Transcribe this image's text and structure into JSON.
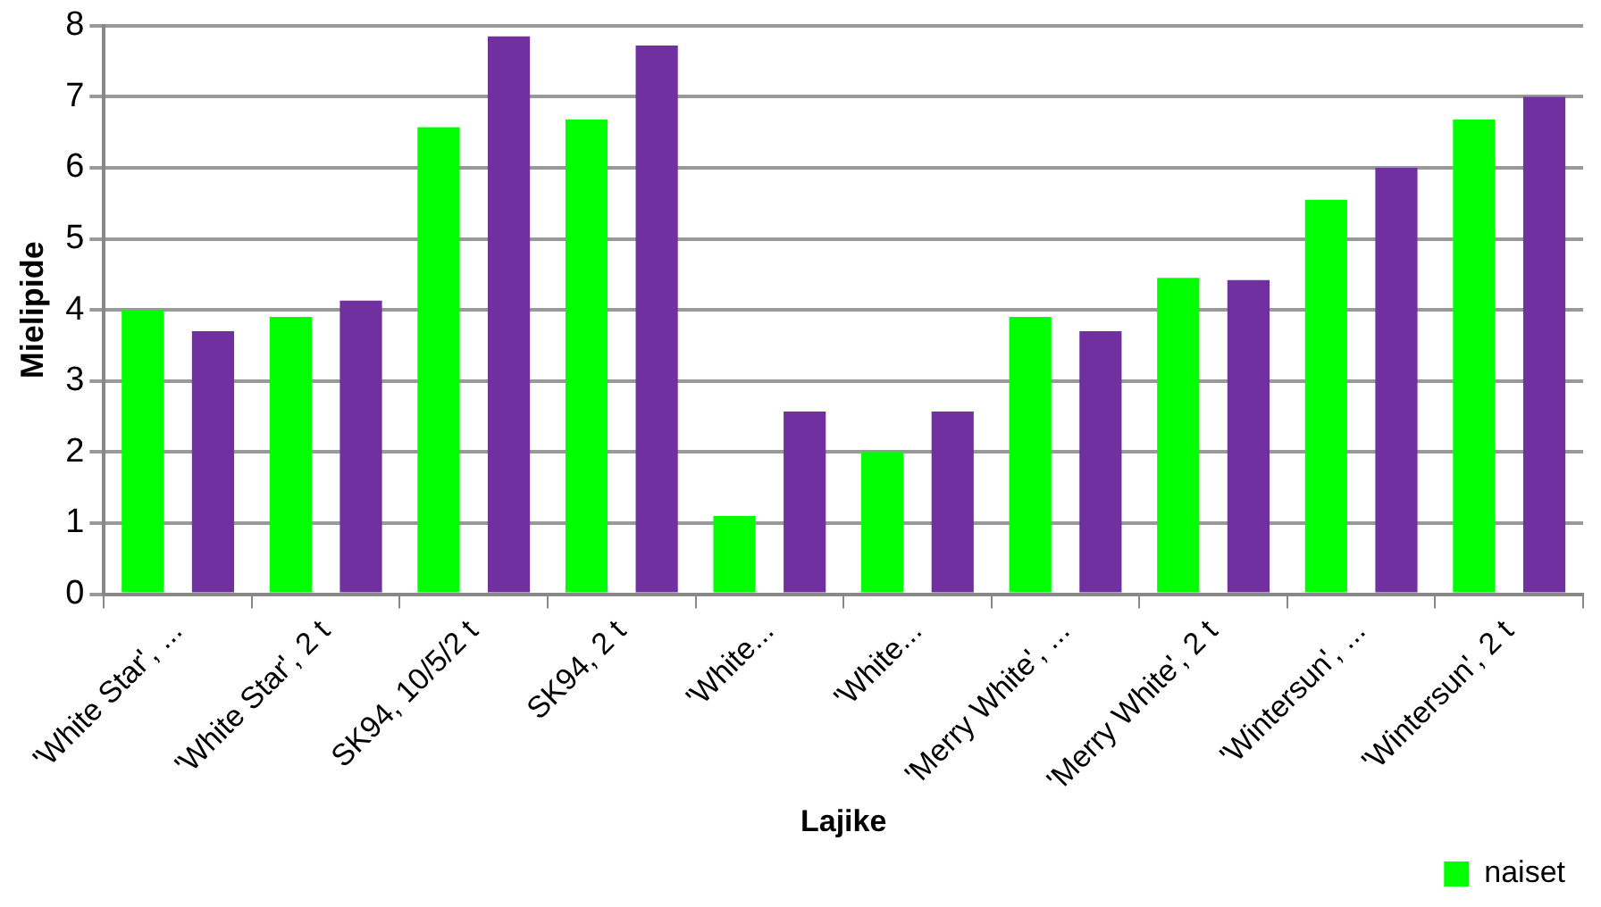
{
  "chart_data": {
    "type": "bar",
    "xlabel": "Lajike",
    "ylabel": "Mielipide",
    "categories": [
      "'White Star', ...",
      "'White Star', 2 t",
      "SK94, 10/5/2 t",
      "SK94, 2 t",
      "'White...",
      "'White...",
      "'Merry White', ...",
      "'Merry White', 2 t",
      "'Wintersun', ...",
      "'Wintersun', 2 t"
    ],
    "series": [
      {
        "name": "naiset",
        "color": "#00ff00",
        "values": [
          4.0,
          3.9,
          6.57,
          6.68,
          1.1,
          2.0,
          3.9,
          4.45,
          5.55,
          6.68
        ]
      },
      {
        "color": "#7030a0",
        "values": [
          3.7,
          4.13,
          7.85,
          7.72,
          2.57,
          2.57,
          3.7,
          4.42,
          6.0,
          7.0
        ]
      }
    ],
    "ylim": [
      0,
      8
    ],
    "yticks": [
      0,
      1,
      2,
      3,
      4,
      5,
      6,
      7,
      8
    ],
    "grid": "y",
    "legend": "bottom right"
  }
}
